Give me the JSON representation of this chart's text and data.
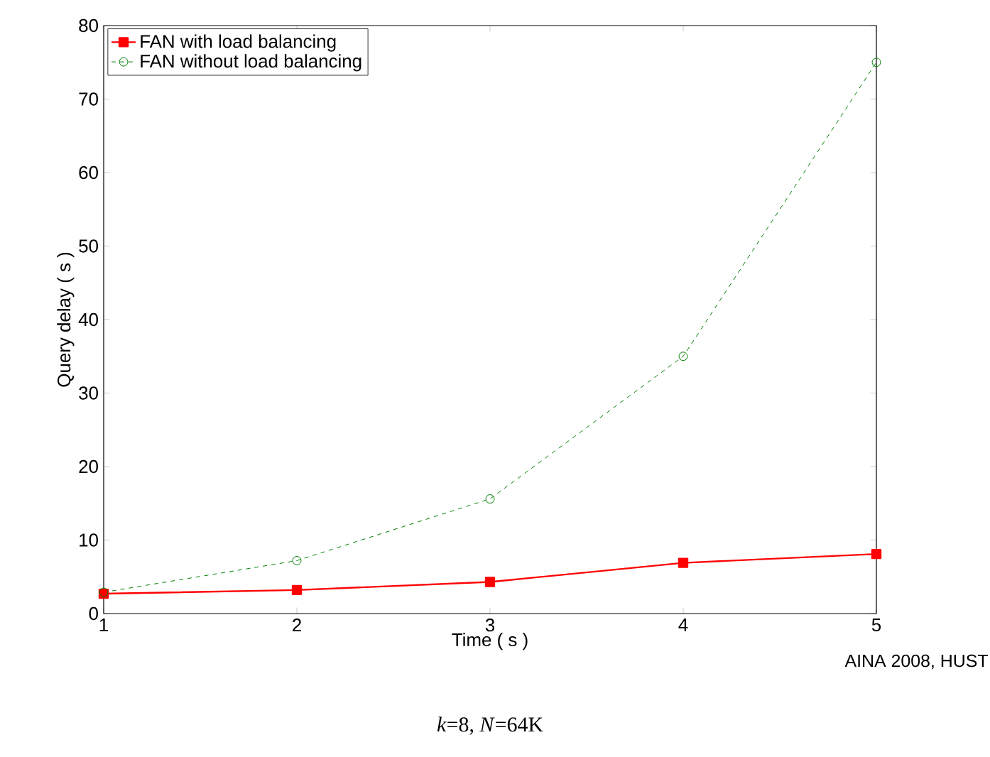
{
  "chart_data": {
    "type": "line",
    "xlabel": "Time ( s )",
    "ylabel": "Query delay ( s )",
    "x": [
      1,
      2,
      3,
      4,
      5
    ],
    "series": [
      {
        "name": "FAN with load balancing",
        "color": "#ff0000",
        "marker": "square",
        "line_style": "solid",
        "values": [
          2.7,
          3.2,
          4.3,
          6.9,
          8.1
        ]
      },
      {
        "name": "FAN without load balancing",
        "color": "#008000",
        "marker": "circle",
        "line_style": "dashed",
        "values": [
          2.9,
          7.2,
          15.6,
          35,
          75
        ]
      }
    ],
    "xlim": [
      1,
      5
    ],
    "xticks": [
      1,
      2,
      3,
      4,
      5
    ],
    "ylim": [
      0,
      80
    ],
    "yticks": [
      0,
      10,
      20,
      30,
      40,
      50,
      60,
      70,
      80
    ],
    "grid": false,
    "legend": "top left",
    "annotations": [
      "AINA 2008, HUST",
      "*k*=8, *N*=64K"
    ]
  }
}
